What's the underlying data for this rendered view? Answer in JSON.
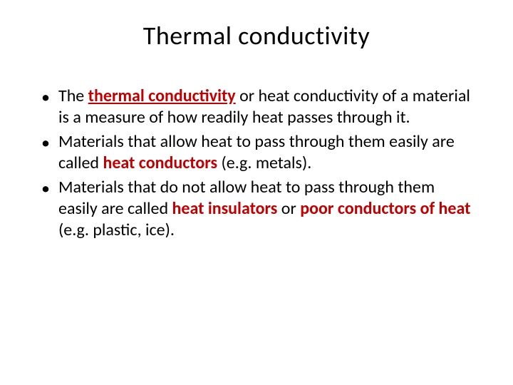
{
  "slide": {
    "title": "Thermal conductivity",
    "title_fontsize": 36,
    "title_color": "#000000",
    "background_color": "#ffffff",
    "text_color": "#000000",
    "term_color": "#c00000",
    "body_fontsize": 24,
    "bullets": [
      {
        "segments": [
          {
            "t": "The ",
            "style": "plain"
          },
          {
            "t": "thermal conductivity",
            "style": "term"
          },
          {
            "t": " or heat conductivity of a material is a measure of how readily heat passes through it.",
            "style": "plain"
          }
        ]
      },
      {
        "segments": [
          {
            "t": "Materials that allow heat to pass through them easily are called ",
            "style": "plain"
          },
          {
            "t": "heat conductors",
            "style": "term-nou"
          },
          {
            "t": " (e.g. metals).",
            "style": "plain"
          }
        ]
      },
      {
        "segments": [
          {
            "t": "Materials that do not allow heat to pass through them easily are called ",
            "style": "plain"
          },
          {
            "t": "heat insulators",
            "style": "term-nou"
          },
          {
            "t": " or ",
            "style": "plain"
          },
          {
            "t": "poor conductors of heat",
            "style": "term-nou"
          },
          {
            "t": " (e.g. plastic, ice).",
            "style": "plain"
          }
        ]
      }
    ]
  }
}
